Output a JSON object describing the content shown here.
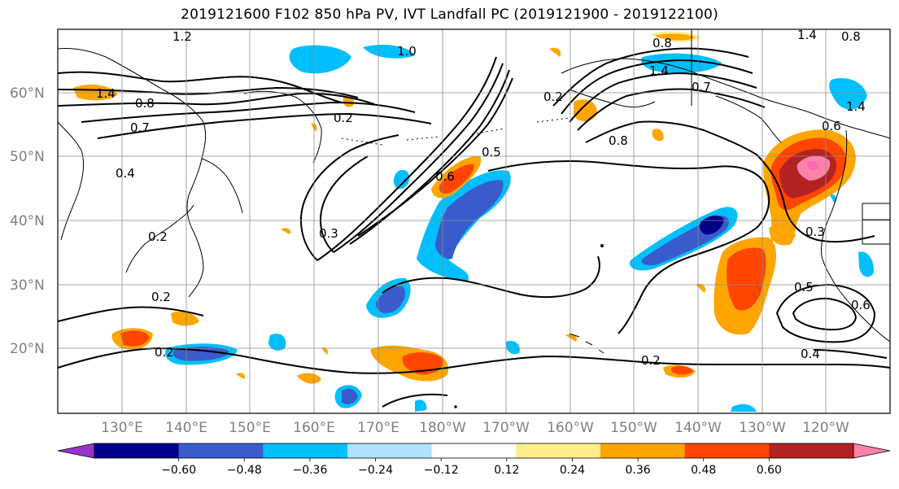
{
  "title": "2019121600 F102 850 hPa PV, IVT Landfall PC (2019121900 - 2019122100)",
  "map": {
    "lat_labels": [
      "20°N",
      "30°N",
      "40°N",
      "50°N",
      "60°N"
    ],
    "lon_labels": [
      "130°E",
      "140°E",
      "150°E",
      "160°E",
      "170°E",
      "180°W",
      "170°W",
      "160°W",
      "150°W",
      "140°W",
      "130°W",
      "120°W"
    ],
    "land_color": "#ffffff",
    "grid": true,
    "contour_color": "#000000",
    "contour_labels": [
      "1.2",
      "1.4",
      "0.8",
      "0.7",
      "0.4",
      "0.2",
      "0.2",
      "0.2",
      "0.2",
      "1.0",
      "0.2",
      "0.3",
      "0.6",
      "0.5",
      "0.8",
      "1.4",
      "0.7",
      "0.8",
      "1.4",
      "0.6",
      "0.3",
      "0.5",
      "0.6",
      "0.4",
      "0.2",
      "0.8",
      "1.4"
    ]
  },
  "colorbar": {
    "tick_labels": [
      "−0.60",
      "−0.48",
      "−0.36",
      "−0.24",
      "−0.12",
      "0.12",
      "0.24",
      "0.36",
      "0.48",
      "0.60"
    ],
    "colors": [
      "#9932cc",
      "#00008b",
      "#3a5bcc",
      "#00bfff",
      "#b0e2ff",
      "#ffffff",
      "#ffec8b",
      "#ffa500",
      "#ff4500",
      "#b22222",
      "#ff82ab"
    ]
  }
}
